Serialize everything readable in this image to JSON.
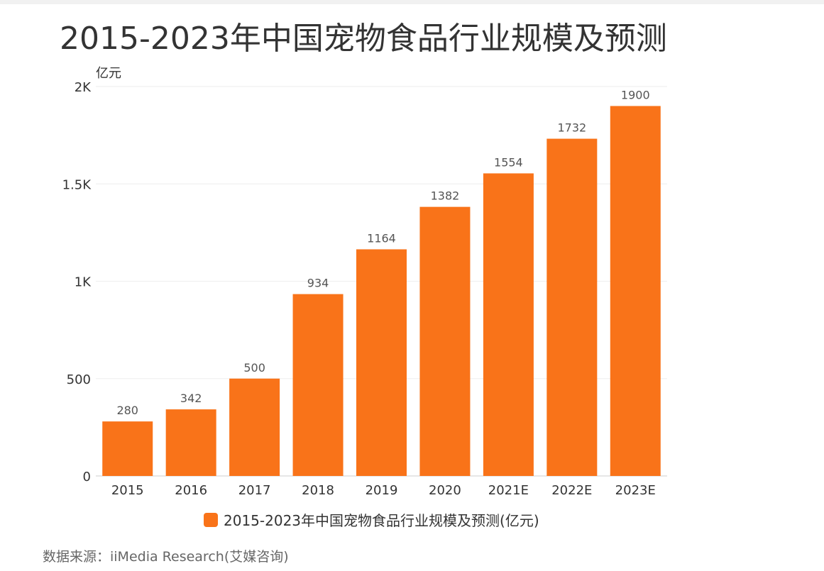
{
  "page": {
    "title": "2015-2023年中国宠物食品行业规模及预测",
    "source": "数据来源：iiMedia Research(艾媒咨询)"
  },
  "colors": {
    "bar": "#f97319",
    "grid": "#eeeeee",
    "axis": "#cccccc",
    "text": "#333333"
  },
  "chart_data": {
    "type": "bar",
    "title": "2015-2023年中国宠物食品行业规模及预测",
    "ylabel": "亿元",
    "xlabel": "",
    "categories": [
      "2015",
      "2016",
      "2017",
      "2018",
      "2019",
      "2020",
      "2021E",
      "2022E",
      "2023E"
    ],
    "series": [
      {
        "name": "2015-2023年中国宠物食品行业规模及预测(亿元)",
        "values": [
          280,
          342,
          500,
          934,
          1164,
          1382,
          1554,
          1732,
          1900
        ]
      }
    ],
    "ylim": [
      0,
      2000
    ],
    "yticks": [
      0,
      500,
      1000,
      1500,
      2000
    ],
    "ytick_labels": [
      "0",
      "500",
      "1K",
      "1.5K",
      "2K"
    ],
    "grid": true,
    "legend_position": "bottom-center"
  }
}
